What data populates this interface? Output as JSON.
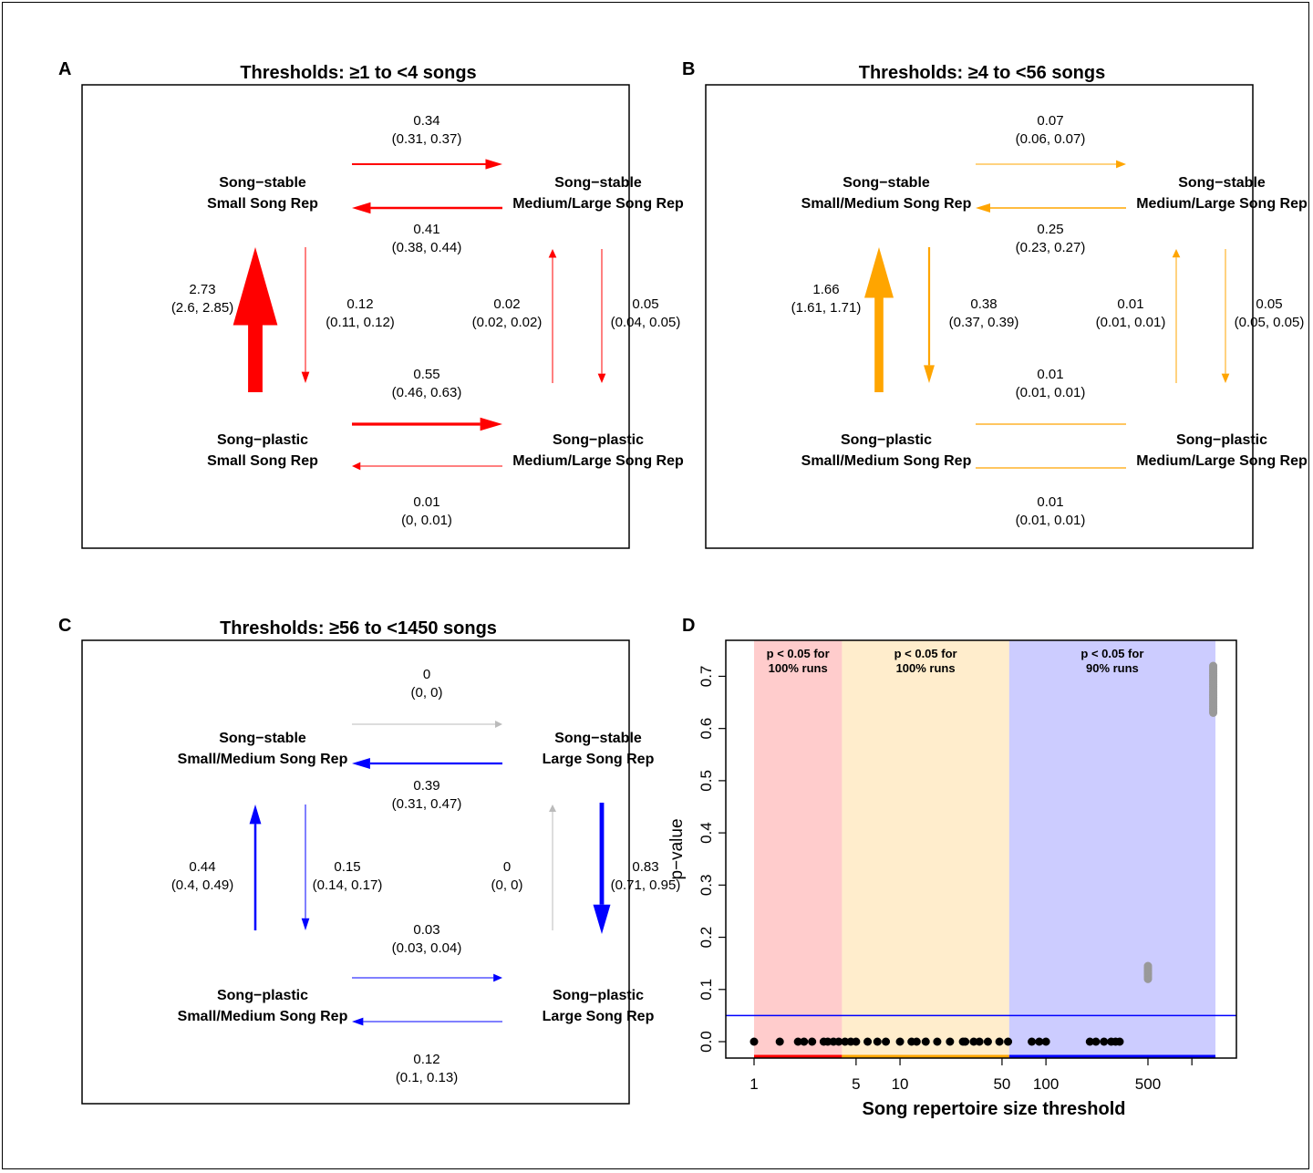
{
  "chart_data": [
    {
      "type": "diagram",
      "panel": "A",
      "title": "Thresholds: ≥1 to <4 songs",
      "color": "#ff0000",
      "nodes": {
        "tl": [
          "Song−stable",
          "Small Song Rep"
        ],
        "tr": [
          "Song−stable",
          "Medium/Large Song Rep"
        ],
        "bl": [
          "Song−plastic",
          "Small Song Rep"
        ],
        "br": [
          "Song−plastic",
          "Medium/Large Song Rep"
        ]
      },
      "transitions": [
        {
          "id": "top_fwd",
          "from": "tl",
          "to": "tr",
          "rate": "0.34",
          "ci": "(0.31, 0.37)"
        },
        {
          "id": "top_back",
          "from": "tr",
          "to": "tl",
          "rate": "0.41",
          "ci": "(0.38, 0.44)"
        },
        {
          "id": "left_up",
          "from": "bl",
          "to": "tl",
          "rate": "2.73",
          "ci": "(2.6, 2.85)"
        },
        {
          "id": "left_down",
          "from": "tl",
          "to": "bl",
          "rate": "0.12",
          "ci": "(0.11, 0.12)"
        },
        {
          "id": "right_up",
          "from": "br",
          "to": "tr",
          "rate": "0.02",
          "ci": "(0.02, 0.02)"
        },
        {
          "id": "right_down",
          "from": "tr",
          "to": "br",
          "rate": "0.05",
          "ci": "(0.04, 0.05)"
        },
        {
          "id": "bot_fwd",
          "from": "bl",
          "to": "br",
          "rate": "0.55",
          "ci": "(0.46, 0.63)"
        },
        {
          "id": "bot_back",
          "from": "br",
          "to": "bl",
          "rate": "0.01",
          "ci": "(0, 0.01)"
        }
      ]
    },
    {
      "type": "diagram",
      "panel": "B",
      "title": "Thresholds: ≥4 to <56 songs",
      "color": "#ffa500",
      "nodes": {
        "tl": [
          "Song−stable",
          "Small/Medium Song Rep"
        ],
        "tr": [
          "Song−stable",
          "Medium/Large Song Rep"
        ],
        "bl": [
          "Song−plastic",
          "Small/Medium Song Rep"
        ],
        "br": [
          "Song−plastic",
          "Medium/Large Song Rep"
        ]
      },
      "transitions": [
        {
          "id": "top_fwd",
          "from": "tl",
          "to": "tr",
          "rate": "0.07",
          "ci": "(0.06, 0.07)"
        },
        {
          "id": "top_back",
          "from": "tr",
          "to": "tl",
          "rate": "0.25",
          "ci": "(0.23, 0.27)"
        },
        {
          "id": "left_up",
          "from": "bl",
          "to": "tl",
          "rate": "1.66",
          "ci": "(1.61, 1.71)"
        },
        {
          "id": "left_down",
          "from": "tl",
          "to": "bl",
          "rate": "0.38",
          "ci": "(0.37, 0.39)"
        },
        {
          "id": "right_up",
          "from": "br",
          "to": "tr",
          "rate": "0.01",
          "ci": "(0.01, 0.01)"
        },
        {
          "id": "right_down",
          "from": "tr",
          "to": "br",
          "rate": "0.05",
          "ci": "(0.05, 0.05)"
        },
        {
          "id": "bot_fwd",
          "from": "bl",
          "to": "br",
          "rate": "0.01",
          "ci": "(0.01, 0.01)"
        },
        {
          "id": "bot_back",
          "from": "br",
          "to": "bl",
          "rate": "0.01",
          "ci": "(0.01, 0.01)"
        }
      ]
    },
    {
      "type": "diagram",
      "panel": "C",
      "title": "Thresholds: ≥56 to <1450 songs",
      "color": "#0000ff",
      "nodes": {
        "tl": [
          "Song−stable",
          "Small/Medium Song Rep"
        ],
        "tr": [
          "Song−stable",
          "Large Song Rep"
        ],
        "bl": [
          "Song−plastic",
          "Small/Medium Song Rep"
        ],
        "br": [
          "Song−plastic",
          "Large Song Rep"
        ]
      },
      "transitions": [
        {
          "id": "top_fwd",
          "from": "tl",
          "to": "tr",
          "rate": "0",
          "ci": "(0, 0)"
        },
        {
          "id": "top_back",
          "from": "tr",
          "to": "tl",
          "rate": "0.39",
          "ci": "(0.31, 0.47)"
        },
        {
          "id": "left_up",
          "from": "bl",
          "to": "tl",
          "rate": "0.44",
          "ci": "(0.4, 0.49)"
        },
        {
          "id": "left_down",
          "from": "tl",
          "to": "bl",
          "rate": "0.15",
          "ci": "(0.14, 0.17)"
        },
        {
          "id": "right_up",
          "from": "br",
          "to": "tr",
          "rate": "0",
          "ci": "(0, 0)"
        },
        {
          "id": "right_down",
          "from": "tr",
          "to": "br",
          "rate": "0.83",
          "ci": "(0.71, 0.95)"
        },
        {
          "id": "bot_fwd",
          "from": "bl",
          "to": "br",
          "rate": "0.03",
          "ci": "(0.03, 0.04)"
        },
        {
          "id": "bot_back",
          "from": "br",
          "to": "bl",
          "rate": "0.12",
          "ci": "(0.1, 0.13)"
        }
      ]
    },
    {
      "type": "scatter",
      "panel": "D",
      "title": "",
      "xlabel": "Song repertoire size threshold",
      "ylabel": "p−value",
      "x_scale": "log",
      "xlim": [
        1,
        1450
      ],
      "ylim": [
        0,
        0.72
      ],
      "xticks": [
        1,
        5,
        10,
        50,
        100,
        500,
        1000
      ],
      "xtick_labels": [
        "1",
        "5",
        "10",
        "50",
        "100",
        "500",
        ""
      ],
      "yticks": [
        0.0,
        0.1,
        0.2,
        0.3,
        0.4,
        0.5,
        0.6,
        0.7
      ],
      "ytick_labels": [
        "0.0",
        "0.1",
        "0.2",
        "0.3",
        "0.4",
        "0.5",
        "0.6",
        "0.7"
      ],
      "hline": 0.05,
      "hline_color": "#0000ff",
      "regions": [
        {
          "from": 1,
          "to": 4,
          "color": "#ff0000",
          "text1": "p < 0.05 for",
          "text2": "100% runs"
        },
        {
          "from": 4,
          "to": 56,
          "color": "#ffa500",
          "text1": "p < 0.05 for",
          "text2": "100% runs"
        },
        {
          "from": 56,
          "to": 1450,
          "color": "#0000ff",
          "text1": "p < 0.05 for",
          "text2": "90% runs"
        }
      ],
      "significant_points": {
        "color": "#000000",
        "x": [
          1,
          1.5,
          2,
          2.2,
          2.5,
          3,
          3.2,
          3.5,
          3.8,
          4.2,
          4.6,
          5,
          6,
          7,
          8,
          10,
          12,
          13,
          15,
          18,
          22,
          27,
          28,
          32,
          35,
          40,
          48,
          55,
          80,
          90,
          100,
          200,
          220,
          250,
          280,
          300,
          320
        ],
        "y": 0
      },
      "nonsignificant_points": {
        "color": "#999999",
        "groups": [
          {
            "x": 500,
            "y_min": 0.12,
            "y_max": 0.145
          },
          {
            "x": 1400,
            "y_min": 0.63,
            "y_max": 0.72
          }
        ]
      }
    }
  ]
}
